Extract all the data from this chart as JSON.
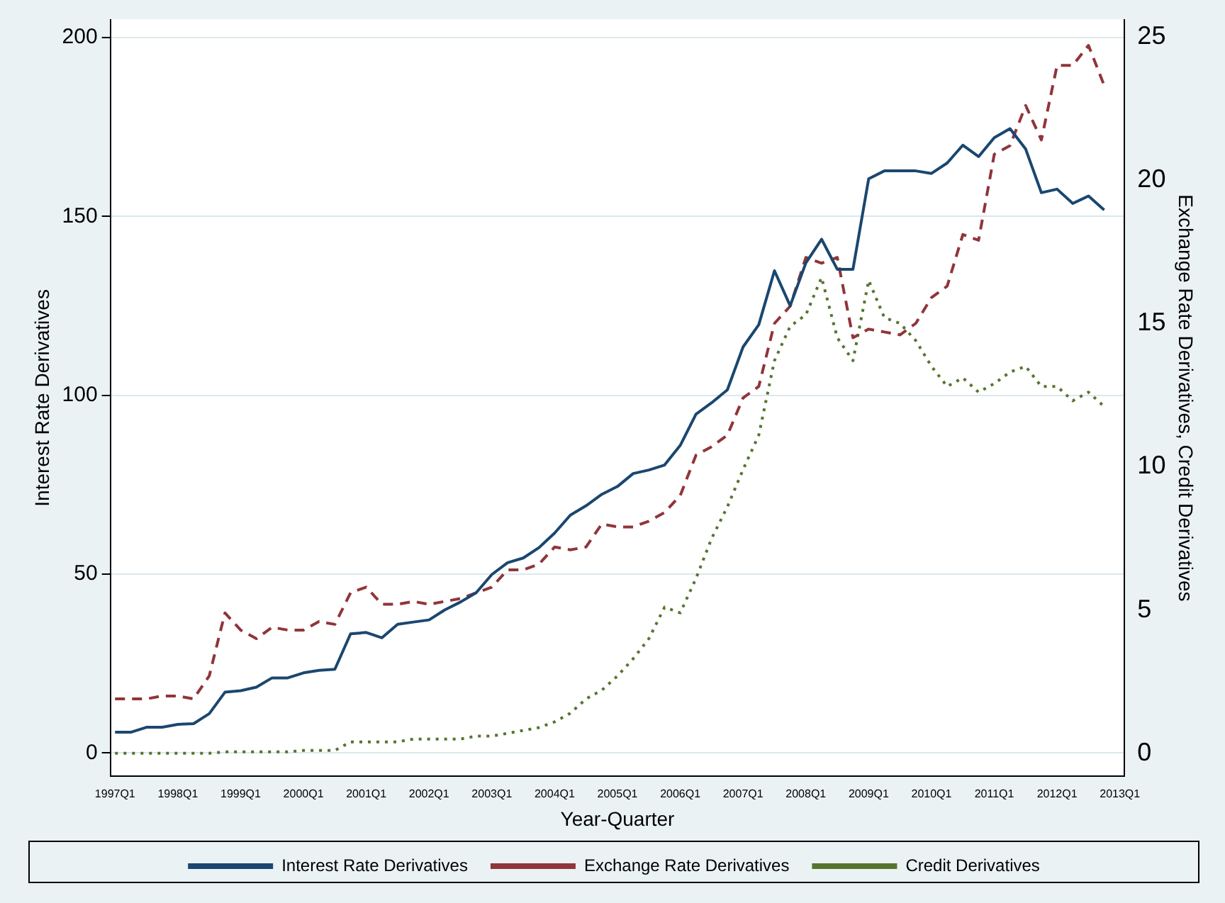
{
  "chart_data": {
    "type": "line",
    "xlabel": "Year-Quarter",
    "ylabel": "Interest Rate Derivatives",
    "y2label": "Exchange Rate Derivatives, Credit Derivatives",
    "categories": [
      "1997Q1",
      null,
      null,
      null,
      "1998Q1",
      null,
      null,
      null,
      "1999Q1",
      null,
      null,
      null,
      "2000Q1",
      null,
      null,
      null,
      "2001Q1",
      null,
      null,
      null,
      "2002Q1",
      null,
      null,
      null,
      "2003Q1",
      null,
      null,
      null,
      "2004Q1",
      null,
      null,
      null,
      "2005Q1",
      null,
      null,
      null,
      "2006Q1",
      null,
      null,
      null,
      "2007Q1",
      null,
      null,
      null,
      "2008Q1",
      null,
      null,
      null,
      "2009Q1",
      null,
      null,
      null,
      "2010Q1",
      null,
      null,
      null,
      "2011Q1",
      null,
      null,
      null,
      "2012Q1",
      null,
      null,
      null,
      "2013Q1"
    ],
    "series": [
      {
        "name": "Interest Rate Derivatives",
        "color": "#1a476f",
        "line_style": "solid",
        "values": [
          5.8,
          5.8,
          7.2,
          7.2,
          8,
          8.2,
          11,
          17,
          17.4,
          18.4,
          21,
          21,
          22.4,
          23.1,
          23.4,
          33.3,
          33.7,
          32.2,
          36,
          36.6,
          37.2,
          40,
          42.2,
          44.8,
          49.9,
          53.2,
          54.5,
          57.4,
          61.5,
          66.5,
          69.1,
          72.3,
          74.5,
          78.1,
          79.1,
          80.5,
          86,
          94.7,
          97.9,
          101.5,
          113.5,
          119.7,
          134.8,
          125,
          137,
          143.6,
          135.2,
          135.2,
          160.5,
          162.7,
          162.7,
          162.7,
          162,
          164.9,
          169.9,
          166.7,
          172,
          174.5,
          168.8,
          156.6,
          157.6,
          153.6,
          155.7,
          151.8,
          null
        ]
      },
      {
        "name": "Exchange Rate Derivatives",
        "color": "#90353b",
        "line_style": "dashed",
        "axis": "y2",
        "values": [
          1.9,
          1.9,
          1.9,
          2,
          2,
          1.9,
          2.7,
          4.9,
          4.3,
          4,
          4.4,
          4.3,
          4.3,
          4.6,
          4.5,
          5.6,
          5.8,
          5.2,
          5.2,
          5.3,
          5.2,
          5.3,
          5.4,
          5.6,
          5.8,
          6.4,
          6.4,
          6.6,
          7.2,
          7.1,
          7.2,
          8,
          7.9,
          7.9,
          8.1,
          8.4,
          9,
          10.4,
          10.7,
          11.1,
          12.4,
          12.8,
          15,
          15.6,
          17.3,
          17.1,
          17.3,
          14.5,
          14.8,
          14.7,
          14.6,
          15,
          15.9,
          16.3,
          18.1,
          17.9,
          20.9,
          21.2,
          22.6,
          21.4,
          24,
          24,
          24.7,
          23.3,
          null
        ]
      },
      {
        "name": "Credit Derivatives",
        "color": "#55752f",
        "line_style": "dotted",
        "axis": "y2",
        "values": [
          0,
          0,
          0,
          0,
          0,
          0,
          0,
          0.05,
          0.05,
          0.05,
          0.05,
          0.05,
          0.1,
          0.1,
          0.1,
          0.4,
          0.4,
          0.4,
          0.4,
          0.5,
          0.5,
          0.5,
          0.5,
          0.6,
          0.6,
          0.7,
          0.8,
          0.9,
          1.1,
          1.4,
          1.9,
          2.2,
          2.7,
          3.3,
          4,
          5.1,
          4.9,
          6.1,
          7.5,
          8.6,
          9.9,
          11.1,
          13.7,
          14.9,
          15.3,
          16.6,
          14.5,
          13.7,
          16.5,
          15.2,
          15,
          14.4,
          13.5,
          12.8,
          13.1,
          12.6,
          12.9,
          13.3,
          13.5,
          12.8,
          12.8,
          12.3,
          12.6,
          12.1,
          null
        ]
      }
    ],
    "ylim": [
      -6.5,
      205
    ],
    "yticks": [
      0,
      50,
      100,
      150,
      200
    ],
    "y2lim": [
      -0.8,
      25.6
    ],
    "y2ticks": [
      0,
      5,
      10,
      15,
      20,
      25
    ],
    "grid": "y",
    "legend": "bottom",
    "marker": "none"
  }
}
